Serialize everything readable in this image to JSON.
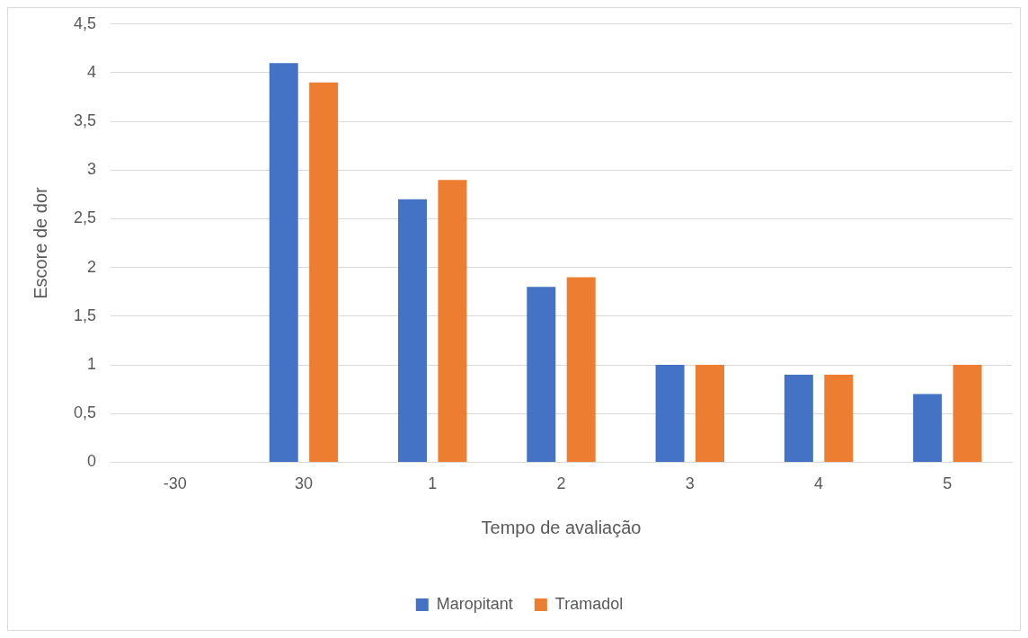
{
  "chart_data": {
    "type": "bar",
    "xlabel": "Tempo de avaliação",
    "ylabel": "Escore de dor",
    "categories": [
      "-30",
      "30",
      "1",
      "2",
      "3",
      "4",
      "5"
    ],
    "series": [
      {
        "name": "Maropitant",
        "color": "#4472c4",
        "values": [
          0,
          4.1,
          2.7,
          1.8,
          1,
          0.9,
          0.7
        ]
      },
      {
        "name": "Tramadol",
        "color": "#ed7d31",
        "values": [
          0,
          3.9,
          2.9,
          1.9,
          1,
          0.9,
          1
        ]
      }
    ],
    "ylim": [
      0,
      4.5
    ],
    "yticks": [
      {
        "value": 0,
        "label": "0"
      },
      {
        "value": 0.5,
        "label": "0,5"
      },
      {
        "value": 1,
        "label": "1"
      },
      {
        "value": 1.5,
        "label": "1,5"
      },
      {
        "value": 2,
        "label": "2"
      },
      {
        "value": 2.5,
        "label": "2,5"
      },
      {
        "value": 3,
        "label": "3"
      },
      {
        "value": 3.5,
        "label": "3,5"
      },
      {
        "value": 4,
        "label": "4"
      },
      {
        "value": 4.5,
        "label": "4,5"
      }
    ],
    "grid": "y",
    "legend": "bottom"
  }
}
